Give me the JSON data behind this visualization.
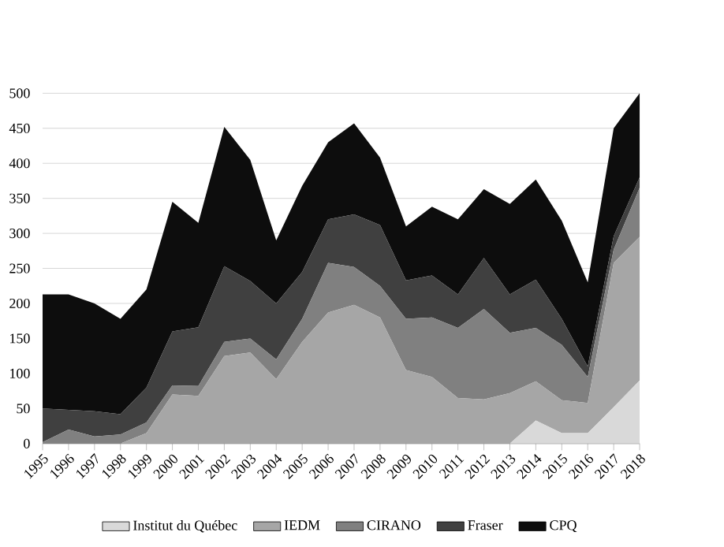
{
  "chart_data": {
    "type": "area",
    "stacked": true,
    "grid": "y",
    "legend": "bottom",
    "ylim": [
      0,
      500
    ],
    "yticks": [
      0,
      50,
      100,
      150,
      200,
      250,
      300,
      350,
      400,
      450,
      500
    ],
    "categories": [
      "1995",
      "1996",
      "1997",
      "1998",
      "1999",
      "2000",
      "2001",
      "2002",
      "2003",
      "2004",
      "2005",
      "2006",
      "2007",
      "2008",
      "2009",
      "2010",
      "2011",
      "2012",
      "2013",
      "2014",
      "2015",
      "2016",
      "2017",
      "2018"
    ],
    "series": [
      {
        "name": "Institut du Québec",
        "color": "#d9d9d9",
        "values": [
          0,
          0,
          0,
          0,
          0,
          0,
          0,
          0,
          0,
          0,
          0,
          0,
          0,
          0,
          0,
          0,
          0,
          0,
          0,
          33,
          15,
          15,
          52,
          90
        ]
      },
      {
        "name": "IEDM",
        "color": "#a6a6a6",
        "values": [
          0,
          0,
          0,
          0,
          15,
          70,
          68,
          125,
          130,
          92,
          145,
          187,
          198,
          180,
          105,
          95,
          65,
          63,
          72,
          56,
          47,
          43,
          206,
          205
        ]
      },
      {
        "name": "CIRANO",
        "color": "#808080",
        "values": [
          2,
          20,
          10,
          13,
          15,
          13,
          14,
          20,
          20,
          28,
          33,
          71,
          54,
          45,
          73,
          85,
          100,
          129,
          86,
          76,
          79,
          37,
          19,
          70
        ]
      },
      {
        "name": "Fraser",
        "color": "#404040",
        "values": [
          48,
          28,
          36,
          29,
          50,
          77,
          84,
          108,
          82,
          80,
          67,
          62,
          75,
          87,
          55,
          60,
          48,
          73,
          55,
          69,
          37,
          15,
          19,
          15
        ]
      },
      {
        "name": "CPQ",
        "color": "#0d0d0d",
        "values": [
          163,
          165,
          154,
          136,
          140,
          185,
          149,
          199,
          173,
          90,
          123,
          110,
          130,
          96,
          77,
          98,
          107,
          98,
          129,
          143,
          140,
          120,
          154,
          120
        ]
      }
    ]
  }
}
